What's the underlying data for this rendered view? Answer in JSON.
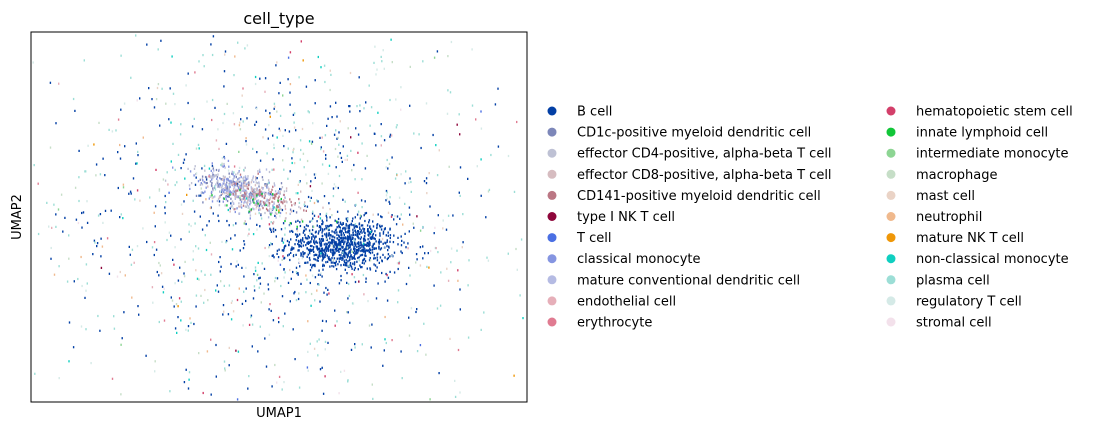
{
  "chart_data": {
    "type": "scatter",
    "title": "cell_type",
    "xlabel": "UMAP1",
    "ylabel": "UMAP2",
    "xlim": [
      -10,
      10
    ],
    "ylim": [
      -10,
      10
    ],
    "grid": false,
    "ticks": "none",
    "legend_placement": "right",
    "legend_columns": 2,
    "legend": [
      {
        "name": "B cell",
        "color": "#023fa5"
      },
      {
        "name": "CD1c-positive myeloid dendritic cell",
        "color": "#7d87b9"
      },
      {
        "name": "effector CD4-positive, alpha-beta T cell",
        "color": "#bec1d4"
      },
      {
        "name": "effector CD8-positive, alpha-beta T cell",
        "color": "#d6bcc0"
      },
      {
        "name": "CD141-positive myeloid dendritic cell",
        "color": "#bb7784"
      },
      {
        "name": "type I NK T cell",
        "color": "#8e063b"
      },
      {
        "name": "T cell",
        "color": "#4a6fe3"
      },
      {
        "name": "classical monocyte",
        "color": "#8595e1"
      },
      {
        "name": "mature conventional dendritic cell",
        "color": "#b5bbe3"
      },
      {
        "name": "endothelial cell",
        "color": "#e6afb9"
      },
      {
        "name": "erythrocyte",
        "color": "#e07b91"
      },
      {
        "name": "hematopoietic stem cell",
        "color": "#d33f6a"
      },
      {
        "name": "innate lymphoid cell",
        "color": "#11c638"
      },
      {
        "name": "intermediate monocyte",
        "color": "#8dd593"
      },
      {
        "name": "macrophage",
        "color": "#c6dec7"
      },
      {
        "name": "mast cell",
        "color": "#ead3c6"
      },
      {
        "name": "neutrophil",
        "color": "#f0b98d"
      },
      {
        "name": "mature NK T cell",
        "color": "#ef9708"
      },
      {
        "name": "non-classical monocyte",
        "color": "#0fcfc0"
      },
      {
        "name": "plasma cell",
        "color": "#9cded6"
      },
      {
        "name": "regulatory T cell",
        "color": "#d5eae7"
      },
      {
        "name": "stromal cell",
        "color": "#f3e1eb"
      }
    ],
    "clusters": [
      {
        "label": "B cell",
        "center": [
          2.5,
          -1.5
        ],
        "spread": [
          1.1,
          0.7
        ],
        "count": 900
      },
      {
        "label": "B cell",
        "center": [
          0.0,
          0.0
        ],
        "spread": [
          4.5,
          4.5
        ],
        "count": 450
      },
      {
        "label": "effector CD4-positive, alpha-beta T cell",
        "center": [
          -1.5,
          1.5
        ],
        "spread": [
          1.0,
          0.5
        ],
        "count": 180
      },
      {
        "label": "CD1c-positive myeloid dendritic cell",
        "center": [
          -1.6,
          1.4
        ],
        "spread": [
          0.9,
          0.45
        ],
        "count": 120
      },
      {
        "label": "classical monocyte",
        "center": [
          -1.8,
          1.6
        ],
        "spread": [
          0.9,
          0.5
        ],
        "count": 110
      },
      {
        "label": "mature conventional dendritic cell",
        "center": [
          -1.2,
          1.3
        ],
        "spread": [
          0.9,
          0.5
        ],
        "count": 90
      },
      {
        "label": "CD141-positive myeloid dendritic cell",
        "center": [
          -0.6,
          1.0
        ],
        "spread": [
          0.7,
          0.4
        ],
        "count": 80
      },
      {
        "label": "effector CD8-positive, alpha-beta T cell",
        "center": [
          -0.8,
          1.1
        ],
        "spread": [
          0.9,
          0.5
        ],
        "count": 80
      },
      {
        "label": "innate lymphoid cell",
        "center": [
          -0.5,
          0.6
        ],
        "spread": [
          1.2,
          0.4
        ],
        "count": 25
      },
      {
        "label": "plasma cell",
        "center": [
          0.0,
          0.0
        ],
        "spread": [
          6.5,
          5.5
        ],
        "count": 320
      },
      {
        "label": "regulatory T cell",
        "center": [
          0.0,
          0.0
        ],
        "spread": [
          6.5,
          5.5
        ],
        "count": 140
      },
      {
        "label": "macrophage",
        "center": [
          0.0,
          0.0
        ],
        "spread": [
          6.0,
          5.5
        ],
        "count": 90
      },
      {
        "label": "non-classical monocyte",
        "center": [
          0.0,
          0.0
        ],
        "spread": [
          6.0,
          5.5
        ],
        "count": 60
      },
      {
        "label": "mast cell",
        "center": [
          0.0,
          0.0
        ],
        "spread": [
          6.0,
          5.5
        ],
        "count": 50
      },
      {
        "label": "neutrophil",
        "center": [
          0.0,
          0.0
        ],
        "spread": [
          6.0,
          5.5
        ],
        "count": 30
      },
      {
        "label": "hematopoietic stem cell",
        "center": [
          0.0,
          0.0
        ],
        "spread": [
          6.0,
          5.5
        ],
        "count": 25
      },
      {
        "label": "erythrocyte",
        "center": [
          0.0,
          0.0
        ],
        "spread": [
          6.0,
          5.5
        ],
        "count": 25
      },
      {
        "label": "endothelial cell",
        "center": [
          0.0,
          0.0
        ],
        "spread": [
          6.0,
          5.5
        ],
        "count": 25
      },
      {
        "label": "stromal cell",
        "center": [
          0.0,
          0.0
        ],
        "spread": [
          6.0,
          5.5
        ],
        "count": 20
      },
      {
        "label": "intermediate monocyte",
        "center": [
          0.0,
          0.0
        ],
        "spread": [
          6.0,
          5.5
        ],
        "count": 20
      },
      {
        "label": "type I NK T cell",
        "center": [
          0.0,
          0.0
        ],
        "spread": [
          6.0,
          5.5
        ],
        "count": 10
      },
      {
        "label": "mature NK T cell",
        "center": [
          0.0,
          0.0
        ],
        "spread": [
          6.0,
          5.5
        ],
        "count": 8
      },
      {
        "label": "T cell",
        "center": [
          0.0,
          0.0
        ],
        "spread": [
          6.0,
          5.5
        ],
        "count": 10
      }
    ]
  }
}
